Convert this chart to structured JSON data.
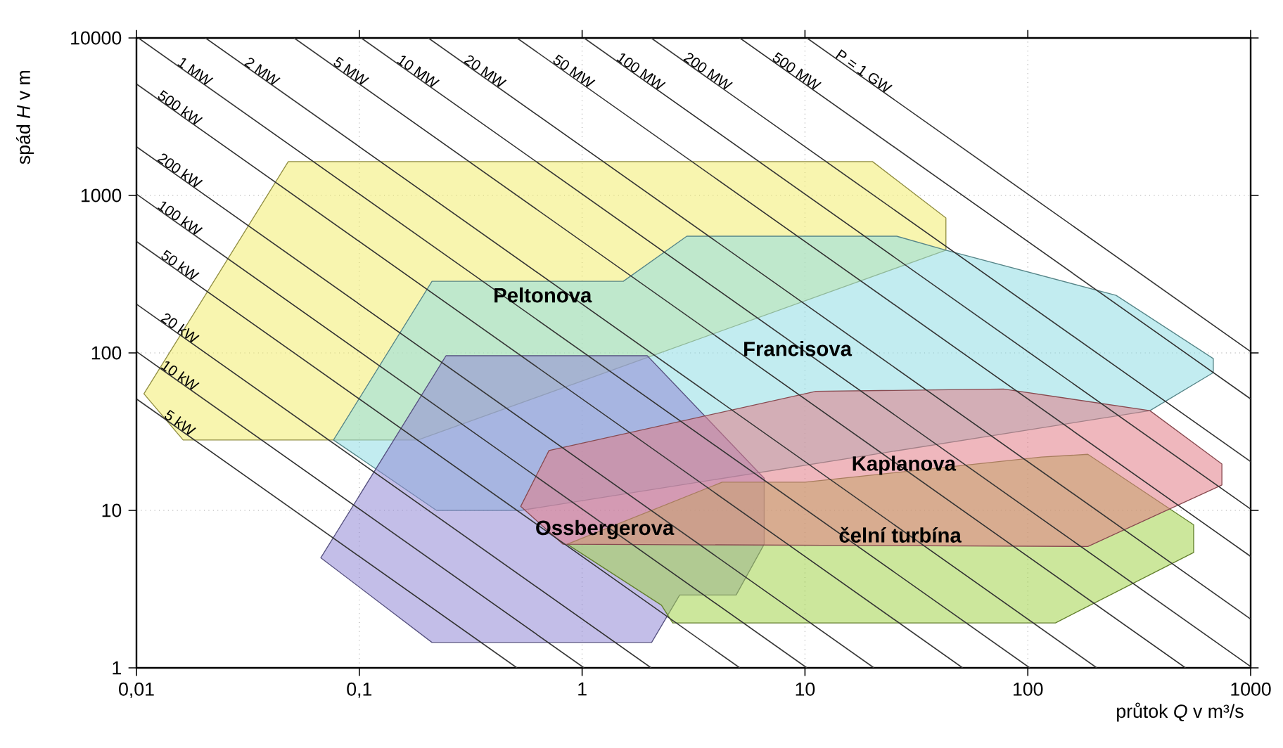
{
  "chart_data": {
    "type": "area",
    "xlabel": "průtok *Q* v m³/s",
    "ylabel": "spád *H* v m",
    "xlim": [
      0.01,
      1000
    ],
    "ylim": [
      1,
      10000
    ],
    "log": "xy",
    "grid": true,
    "xticks": [
      {
        "value": 0.01,
        "label": "0,01"
      },
      {
        "value": 0.1,
        "label": "0,1"
      },
      1,
      10,
      100,
      1000
    ],
    "yticks": [
      1,
      10,
      100,
      1000,
      10000
    ],
    "series": [
      {
        "name": "Peltonova",
        "color": "#f2ec6e",
        "x": [
          0.048,
          20.1,
          42.9,
          42.9,
          0.183,
          0.0162,
          0.0108
        ],
        "values": [
          1640,
          1640,
          720,
          449,
          28,
          28,
          55
        ]
      },
      {
        "name": "Francisova",
        "color": "#8fdde3",
        "x": [
          0.212,
          1.53,
          2.95,
          25.8,
          42.9,
          249,
          680,
          680,
          353,
          0.53,
          0.222,
          0.0766
        ],
        "values": [
          285,
          285,
          551,
          551,
          449,
          232,
          92,
          75,
          43,
          10,
          10,
          28
        ]
      },
      {
        "name": "Ossbergerova",
        "color": "#9189d6",
        "x": [
          0.0672,
          0.245,
          1.96,
          6.56,
          6.56,
          4.91,
          2.74,
          2.05,
          0.212
        ],
        "values": [
          5.0,
          96,
          96,
          16,
          6.1,
          2.9,
          2.9,
          1.45,
          1.45
        ]
      },
      {
        "name": "čelní turbína",
        "color": "#a3d34a",
        "x": [
          0.857,
          4.25,
          10.0,
          115,
          186,
          555,
          555,
          133,
          2.55,
          2.27
        ],
        "values": [
          6.1,
          15.1,
          15.1,
          21.8,
          22.7,
          8.1,
          5.4,
          1.93,
          1.93,
          2.5
        ]
      },
      {
        "name": "Kaplanova",
        "color": "#e27c86",
        "x": [
          0.53,
          0.71,
          11.2,
          77.9,
          353,
          743,
          743,
          186,
          0.82
        ],
        "values": [
          10.6,
          24,
          57,
          59,
          43,
          19.7,
          14.5,
          5.9,
          6.1
        ]
      },
      {
        "name": "5 kW",
        "type": "line",
        "color": "#333333",
        "x": [
          0.01,
          0.51
        ],
        "values": [
          51,
          1
        ]
      },
      {
        "name": "10 kW",
        "type": "line",
        "color": "#333333",
        "x": [
          0.01,
          1.02
        ],
        "values": [
          102,
          1
        ]
      },
      {
        "name": "20 kW",
        "type": "line",
        "color": "#333333",
        "x": [
          0.01,
          2.04
        ],
        "values": [
          204,
          1
        ]
      },
      {
        "name": "50 kW",
        "type": "line",
        "color": "#333333",
        "x": [
          0.01,
          5.1
        ],
        "values": [
          510,
          1
        ]
      },
      {
        "name": "100 kW",
        "type": "line",
        "color": "#333333",
        "x": [
          0.01,
          10.2
        ],
        "values": [
          1020,
          1
        ]
      },
      {
        "name": "200 kW",
        "type": "line",
        "color": "#333333",
        "x": [
          0.01,
          20.4
        ],
        "values": [
          2040,
          1
        ]
      },
      {
        "name": "500 kW",
        "type": "line",
        "color": "#333333",
        "x": [
          0.01,
          51
        ],
        "values": [
          5100,
          1
        ]
      },
      {
        "name": "1 MW",
        "type": "line",
        "color": "#333333",
        "x": [
          0.0102,
          102
        ],
        "values": [
          10000,
          1
        ]
      },
      {
        "name": "2 MW",
        "type": "line",
        "color": "#333333",
        "x": [
          0.0204,
          204
        ],
        "values": [
          10000,
          1
        ]
      },
      {
        "name": "5 MW",
        "type": "line",
        "color": "#333333",
        "x": [
          0.051,
          510
        ],
        "values": [
          10000,
          1
        ]
      },
      {
        "name": "10 MW",
        "type": "line",
        "color": "#333333",
        "x": [
          0.102,
          1000
        ],
        "values": [
          10000,
          1.02
        ]
      },
      {
        "name": "20 MW",
        "type": "line",
        "color": "#333333",
        "x": [
          0.204,
          1000
        ],
        "values": [
          10000,
          2.04
        ]
      },
      {
        "name": "50 MW",
        "type": "line",
        "color": "#333333",
        "x": [
          0.51,
          1000
        ],
        "values": [
          10000,
          5.1
        ]
      },
      {
        "name": "100 MW",
        "type": "line",
        "color": "#333333",
        "x": [
          1.02,
          1000
        ],
        "values": [
          10000,
          10.2
        ]
      },
      {
        "name": "200 MW",
        "type": "line",
        "color": "#333333",
        "x": [
          2.04,
          1000
        ],
        "values": [
          10000,
          20.4
        ]
      },
      {
        "name": "500 MW",
        "type": "line",
        "color": "#333333",
        "x": [
          5.1,
          1000
        ],
        "values": [
          10000,
          51
        ]
      },
      {
        "name": "P = 1 GW",
        "type": "line",
        "color": "#333333",
        "x": [
          10.2,
          1000
        ],
        "values": [
          10000,
          102
        ]
      }
    ]
  }
}
